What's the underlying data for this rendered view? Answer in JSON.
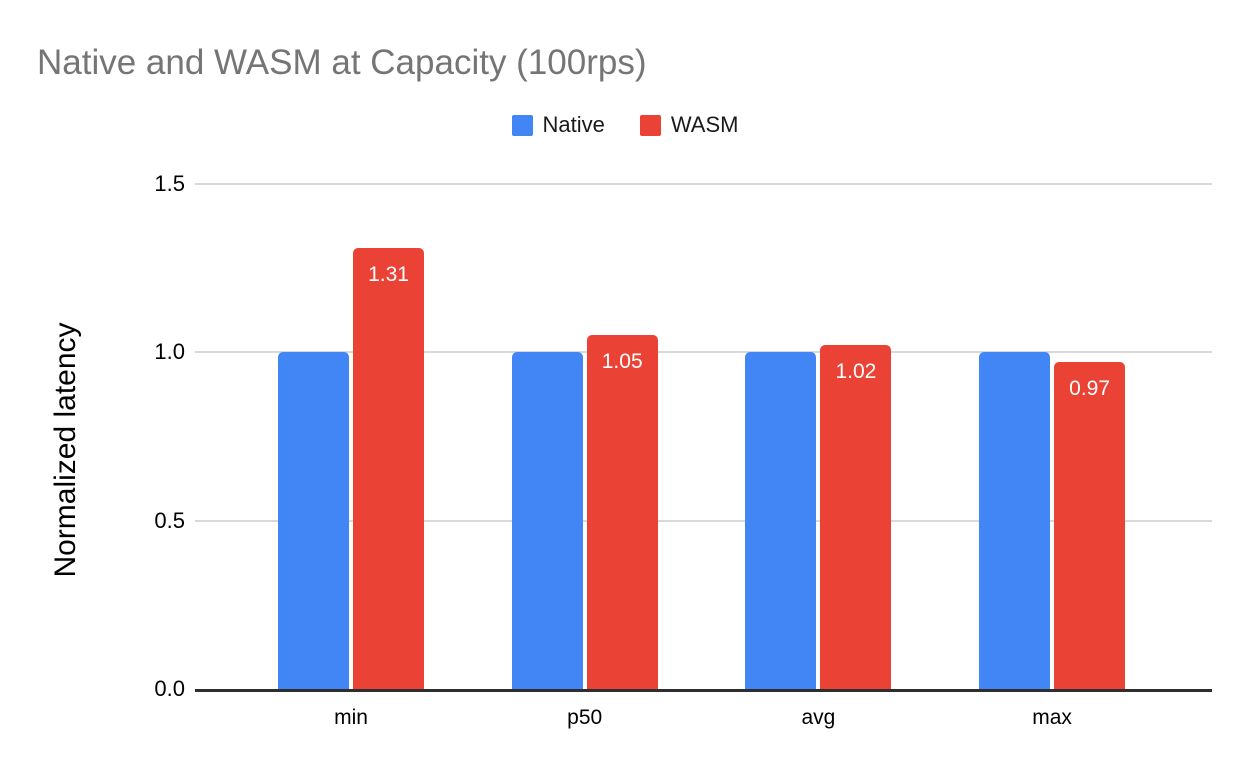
{
  "title": "Native and WASM at Capacity (100rps)",
  "legend": {
    "items": [
      {
        "label": "Native",
        "color": "#4285f4"
      },
      {
        "label": "WASM",
        "color": "#ea4335"
      }
    ]
  },
  "colors": {
    "background": "#ffffff",
    "title_text": "#757575",
    "gridline": "#d9d9d9",
    "axis_line": "#2e2e2e",
    "tick_text": "#000000",
    "bar_value_text": "#ffffff",
    "native_bar": "#4285f4",
    "wasm_bar": "#ea4335"
  },
  "chart_data": {
    "type": "bar",
    "title": "Native and WASM at Capacity (100rps)",
    "xlabel": "",
    "ylabel": "Normalized latency",
    "categories": [
      "min",
      "p50",
      "avg",
      "max"
    ],
    "series": [
      {
        "name": "Native",
        "color": "#4285f4",
        "values": [
          1.0,
          1.0,
          1.0,
          1.0
        ],
        "show_value_labels": false,
        "value_labels": []
      },
      {
        "name": "WASM",
        "color": "#ea4335",
        "values": [
          1.31,
          1.05,
          1.02,
          0.97
        ],
        "show_value_labels": true,
        "value_labels": [
          "1.31",
          "1.05",
          "1.02",
          "0.97"
        ]
      }
    ],
    "ylim": [
      0,
      1.5
    ],
    "yticks": [
      {
        "value": 0.0,
        "label": "0.0"
      },
      {
        "value": 0.5,
        "label": "0.5"
      },
      {
        "value": 1.0,
        "label": "1.0"
      },
      {
        "value": 1.5,
        "label": "1.5"
      }
    ],
    "grid": true,
    "legend_position": "top"
  }
}
